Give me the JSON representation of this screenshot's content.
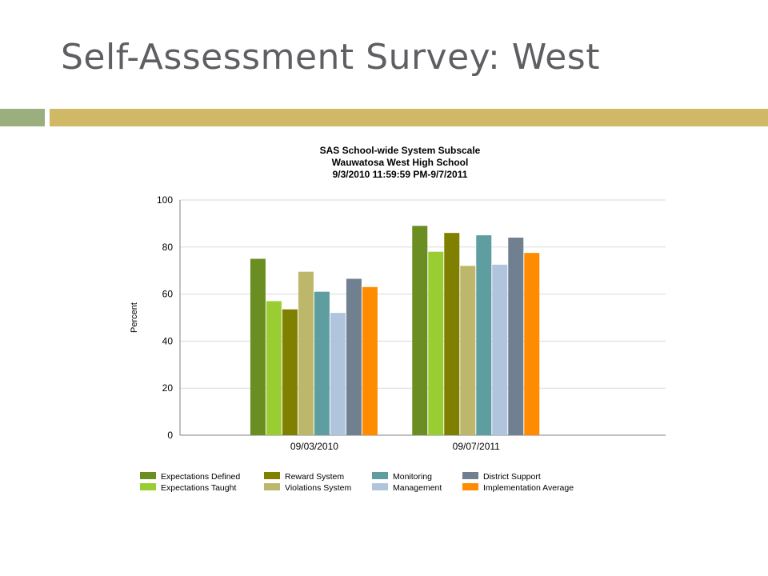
{
  "slide": {
    "title": "Self-Assessment Survey: West"
  },
  "colors": {
    "title_text": "#5f5f63",
    "accent_green": "#9aae7e",
    "accent_gold": "#cfb866"
  },
  "chart_data": {
    "type": "bar",
    "title": "SAS School-wide System Subscale",
    "subtitle_school": "Wauwatosa West High School",
    "subtitle_range": "9/3/2010 11:59:59 PM-9/7/2011",
    "ylabel": "Percent",
    "xlabel": "",
    "ylim": [
      0,
      100
    ],
    "yticks": [
      0,
      20,
      40,
      60,
      80,
      100
    ],
    "grid": true,
    "legend_position": "bottom",
    "categories": [
      "09/03/2010",
      "09/07/2011"
    ],
    "series": [
      {
        "name": "Expectations Defined",
        "color": "#6b8e23",
        "values": [
          75,
          89
        ]
      },
      {
        "name": "Expectations Taught",
        "color": "#9acd32",
        "values": [
          57,
          78
        ]
      },
      {
        "name": "Reward System",
        "color": "#808000",
        "values": [
          53.5,
          86
        ]
      },
      {
        "name": "Violations System",
        "color": "#bdb76b",
        "values": [
          69.5,
          72
        ]
      },
      {
        "name": "Monitoring",
        "color": "#5f9ea0",
        "values": [
          61,
          85
        ]
      },
      {
        "name": "Management",
        "color": "#b0c4de",
        "values": [
          52,
          72.5
        ]
      },
      {
        "name": "District Support",
        "color": "#708090",
        "values": [
          66.5,
          84
        ]
      },
      {
        "name": "Implementation Average",
        "color": "#ff8c00",
        "values": [
          63,
          77.5
        ]
      }
    ]
  }
}
